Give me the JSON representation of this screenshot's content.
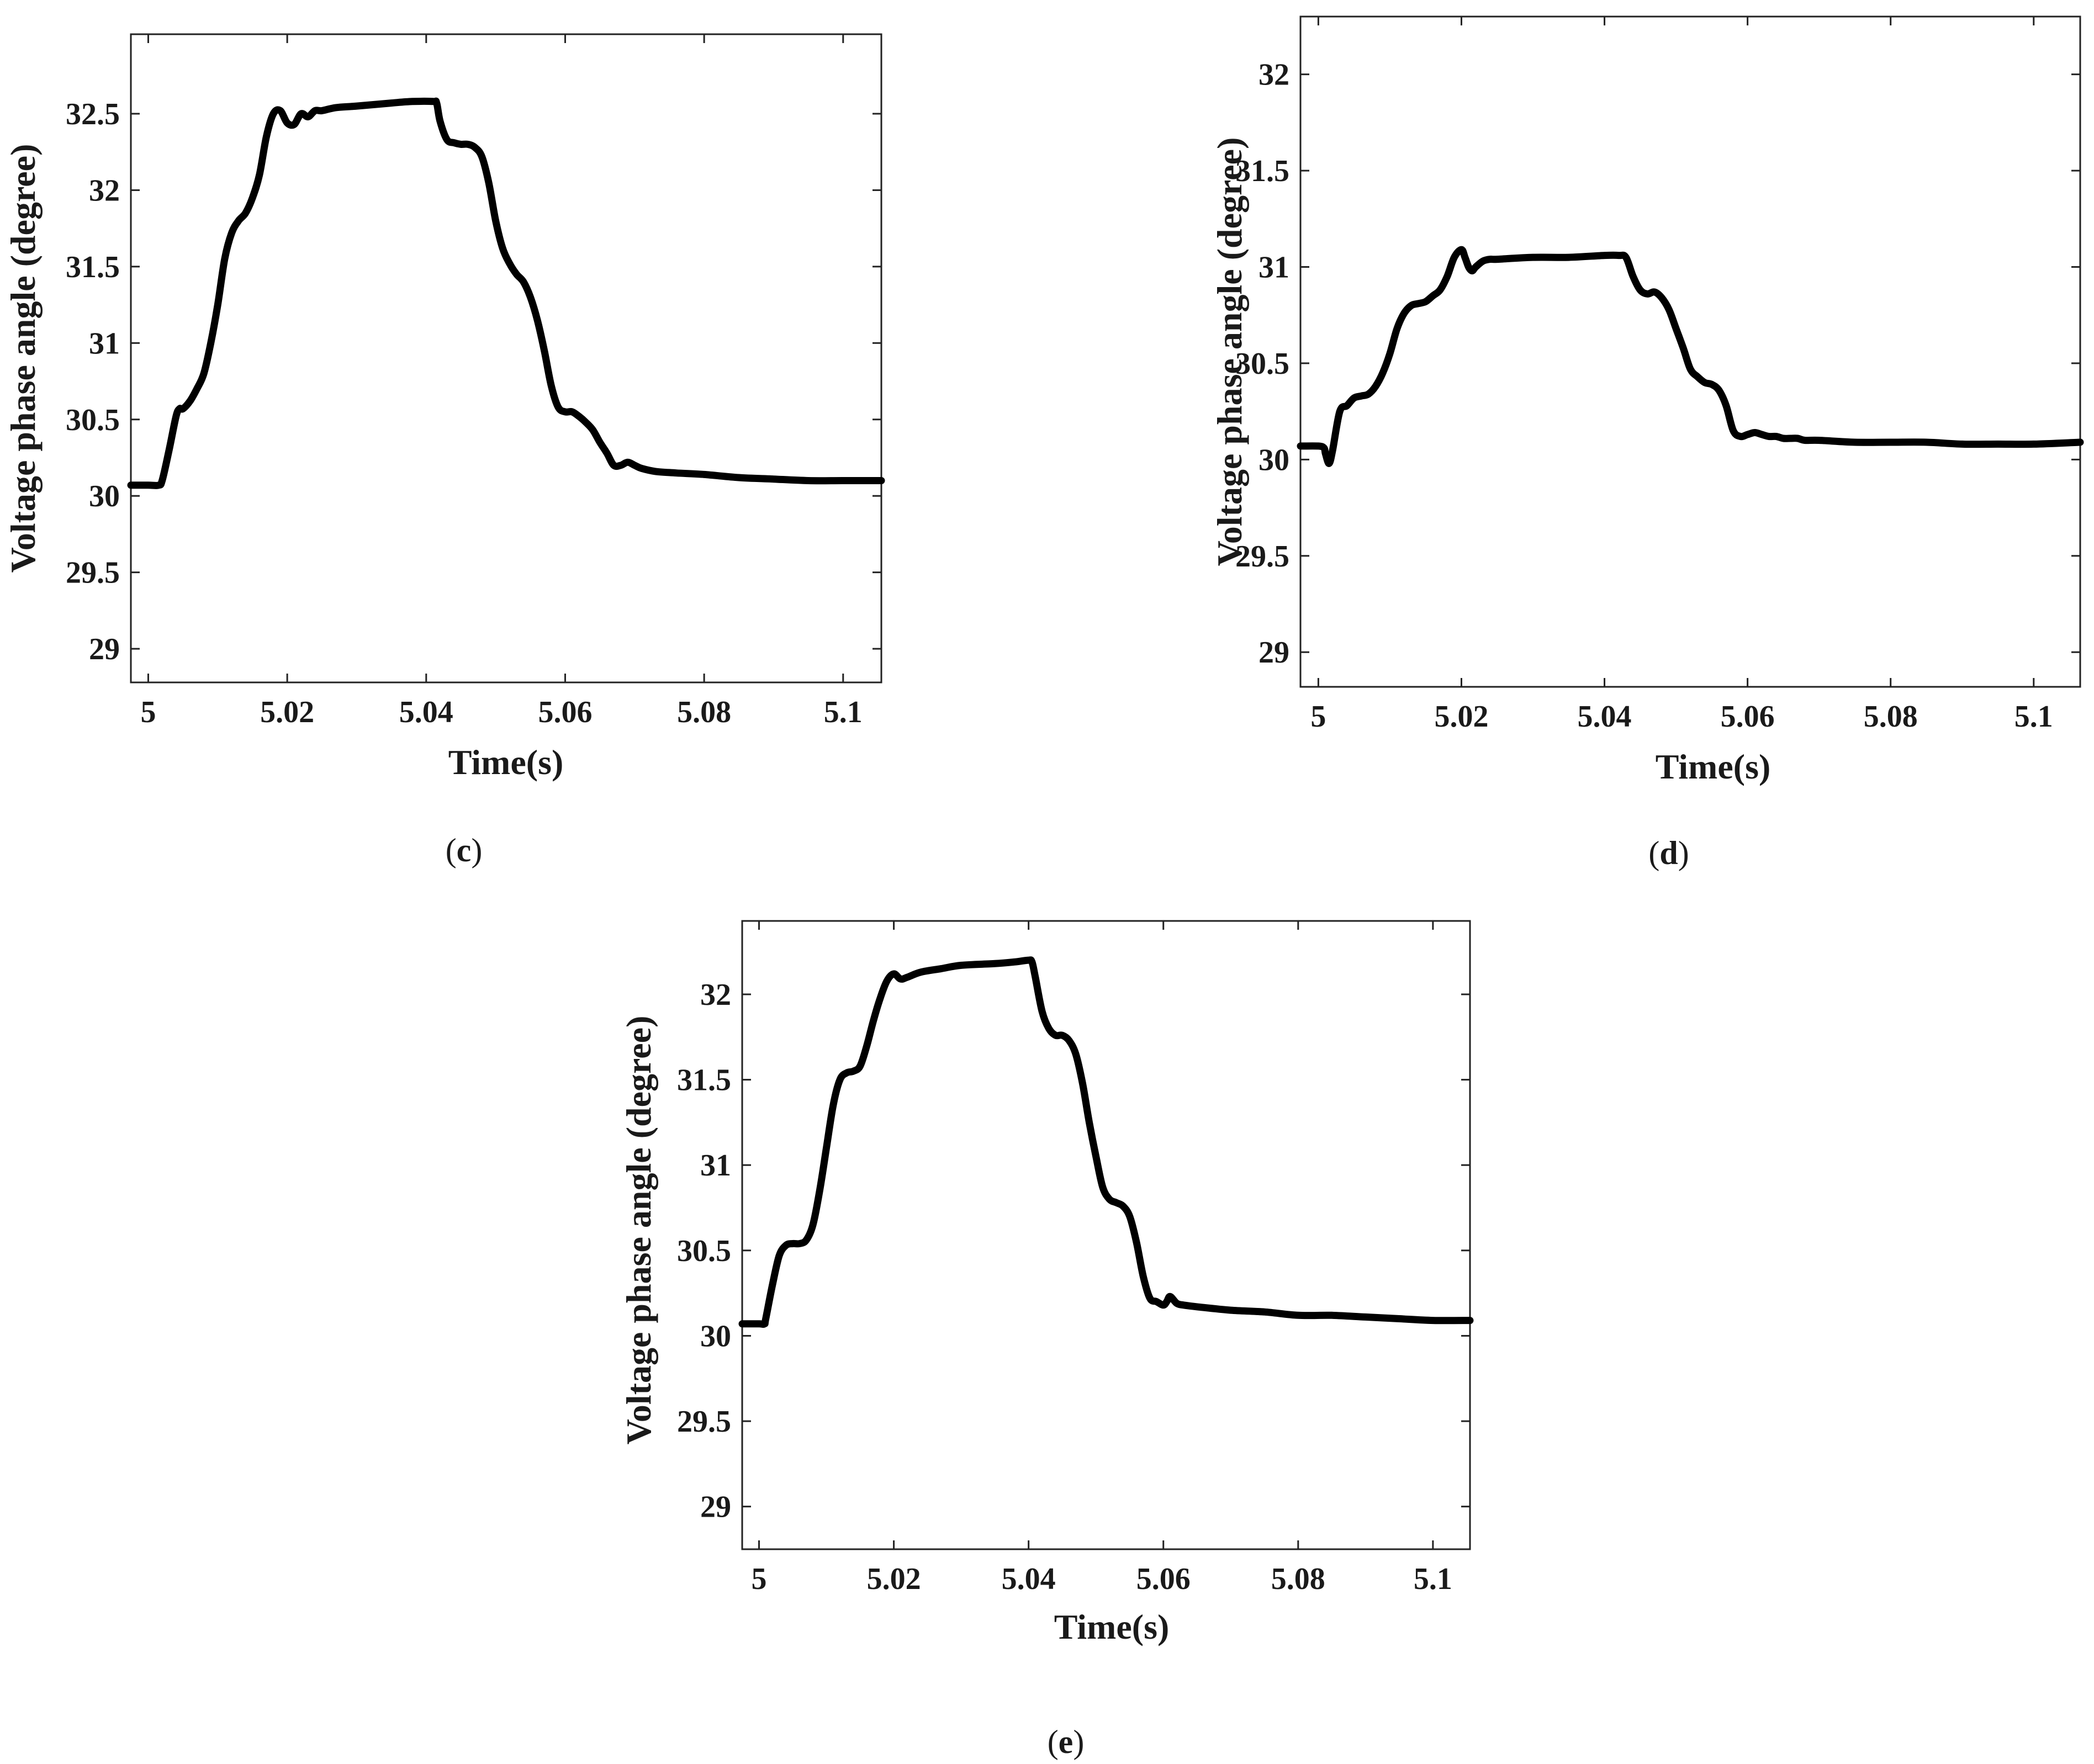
{
  "figure": {
    "panels": [
      {
        "caption_letter": "c"
      },
      {
        "caption_letter": "d"
      },
      {
        "caption_letter": "e"
      }
    ]
  },
  "chart_data": [
    {
      "type": "line",
      "title": "",
      "caption": "(c)",
      "xlabel": "Time(s)",
      "ylabel": "Voltage phase angle (degree)",
      "xlim": [
        4.9975,
        5.1055
      ],
      "ylim": [
        28.78,
        33.02
      ],
      "xticks": [
        5,
        5.02,
        5.04,
        5.06,
        5.08,
        5.1
      ],
      "xtick_labels": [
        "5",
        "5.02",
        "5.04",
        "5.06",
        "5.08",
        "5.1"
      ],
      "yticks": [
        29,
        29.5,
        30,
        30.5,
        31,
        31.5,
        32,
        32.5
      ],
      "ytick_labels": [
        "29",
        "29.5",
        "30",
        "30.5",
        "31",
        "31.5",
        "32",
        "32.5"
      ],
      "grid": false,
      "series": [
        {
          "color": "#000000",
          "x": [
            4.9975,
            5.0,
            5.0015,
            5.002,
            5.003,
            5.004,
            5.0045,
            5.005,
            5.006,
            5.007,
            5.008,
            5.009,
            5.01,
            5.011,
            5.012,
            5.013,
            5.014,
            5.015,
            5.016,
            5.017,
            5.018,
            5.019,
            5.02,
            5.021,
            5.022,
            5.023,
            5.024,
            5.025,
            5.027,
            5.03,
            5.035,
            5.038,
            5.041,
            5.0415,
            5.042,
            5.043,
            5.044,
            5.045,
            5.046,
            5.047,
            5.048,
            5.049,
            5.05,
            5.051,
            5.052,
            5.053,
            5.054,
            5.055,
            5.056,
            5.057,
            5.058,
            5.059,
            5.06,
            5.061,
            5.062,
            5.063,
            5.064,
            5.065,
            5.066,
            5.067,
            5.068,
            5.069,
            5.07,
            5.071,
            5.073,
            5.076,
            5.08,
            5.085,
            5.09,
            5.095,
            5.1,
            5.1055
          ],
          "y": [
            30.07,
            30.07,
            30.07,
            30.1,
            30.3,
            30.52,
            30.57,
            30.57,
            30.62,
            30.7,
            30.8,
            31.0,
            31.25,
            31.55,
            31.72,
            31.8,
            31.85,
            31.95,
            32.1,
            32.35,
            32.5,
            32.52,
            32.44,
            32.43,
            32.5,
            32.48,
            32.52,
            32.52,
            32.54,
            32.55,
            32.57,
            32.58,
            32.58,
            32.57,
            32.45,
            32.33,
            32.31,
            32.3,
            32.3,
            32.28,
            32.22,
            32.05,
            31.8,
            31.62,
            31.52,
            31.45,
            31.4,
            31.3,
            31.15,
            30.95,
            30.72,
            30.58,
            30.55,
            30.55,
            30.52,
            30.48,
            30.43,
            30.35,
            30.28,
            30.2,
            30.2,
            30.22,
            30.2,
            30.18,
            30.16,
            30.15,
            30.14,
            30.12,
            30.11,
            30.1,
            30.1,
            30.1
          ]
        }
      ]
    },
    {
      "type": "line",
      "title": "",
      "caption": "(d)",
      "xlabel": "Time(s)",
      "ylabel": "Voltage phase angle (degree)",
      "xlim": [
        4.9975,
        5.1065
      ],
      "ylim": [
        28.82,
        32.3
      ],
      "xticks": [
        5,
        5.02,
        5.04,
        5.06,
        5.08,
        5.1
      ],
      "xtick_labels": [
        "5",
        "5.02",
        "5.04",
        "5.06",
        "5.08",
        "5.1"
      ],
      "yticks": [
        29,
        29.5,
        30,
        30.5,
        31,
        31.5,
        32
      ],
      "ytick_labels": [
        "29",
        "29.5",
        "30",
        "30.5",
        "31",
        "31.5",
        "32"
      ],
      "grid": false,
      "series": [
        {
          "color": "#000000",
          "x": [
            4.9975,
            5.0,
            5.0008,
            5.001,
            5.0015,
            5.002,
            5.003,
            5.004,
            5.005,
            5.006,
            5.007,
            5.008,
            5.009,
            5.01,
            5.011,
            5.012,
            5.013,
            5.014,
            5.015,
            5.016,
            5.017,
            5.018,
            5.019,
            5.02,
            5.0205,
            5.021,
            5.0215,
            5.022,
            5.023,
            5.024,
            5.025,
            5.03,
            5.035,
            5.04,
            5.042,
            5.043,
            5.044,
            5.045,
            5.046,
            5.047,
            5.048,
            5.049,
            5.05,
            5.051,
            5.052,
            5.053,
            5.054,
            5.055,
            5.056,
            5.057,
            5.058,
            5.059,
            5.06,
            5.061,
            5.062,
            5.063,
            5.064,
            5.065,
            5.066,
            5.067,
            5.068,
            5.07,
            5.075,
            5.08,
            5.085,
            5.09,
            5.095,
            5.1,
            5.1065
          ],
          "y": [
            30.07,
            30.07,
            30.06,
            30.03,
            29.98,
            30.05,
            30.25,
            30.28,
            30.32,
            30.33,
            30.34,
            30.38,
            30.45,
            30.55,
            30.68,
            30.76,
            30.8,
            30.81,
            30.82,
            30.85,
            30.88,
            30.95,
            31.05,
            31.09,
            31.05,
            31.0,
            30.98,
            31.0,
            31.03,
            31.04,
            31.04,
            31.05,
            31.05,
            31.06,
            31.06,
            31.05,
            30.95,
            30.88,
            30.86,
            30.87,
            30.84,
            30.78,
            30.68,
            30.58,
            30.47,
            30.43,
            30.4,
            30.39,
            30.36,
            30.28,
            30.15,
            30.12,
            30.13,
            30.14,
            30.13,
            30.12,
            30.12,
            30.11,
            30.11,
            30.11,
            30.1,
            30.1,
            30.09,
            30.09,
            30.09,
            30.08,
            30.08,
            30.08,
            30.09
          ]
        }
      ]
    },
    {
      "type": "line",
      "title": "",
      "caption": "(e)",
      "xlabel": "Time(s)",
      "ylabel": "Voltage phase angle (degree)",
      "xlim": [
        4.9975,
        5.1055
      ],
      "ylim": [
        28.75,
        32.43
      ],
      "xticks": [
        5,
        5.02,
        5.04,
        5.06,
        5.08,
        5.1
      ],
      "xtick_labels": [
        "5",
        "5.02",
        "5.04",
        "5.06",
        "5.08",
        "5.1"
      ],
      "yticks": [
        29,
        29.5,
        30,
        30.5,
        31,
        31.5,
        32
      ],
      "ytick_labels": [
        "29",
        "29.5",
        "30",
        "30.5",
        "31",
        "31.5",
        "32"
      ],
      "grid": false,
      "series": [
        {
          "color": "#000000",
          "x": [
            4.9975,
            5.0,
            5.0008,
            5.001,
            5.002,
            5.003,
            5.004,
            5.005,
            5.006,
            5.007,
            5.008,
            5.009,
            5.01,
            5.011,
            5.012,
            5.013,
            5.014,
            5.015,
            5.016,
            5.017,
            5.018,
            5.019,
            5.02,
            5.021,
            5.022,
            5.024,
            5.027,
            5.03,
            5.035,
            5.038,
            5.04,
            5.0405,
            5.041,
            5.042,
            5.043,
            5.044,
            5.045,
            5.046,
            5.047,
            5.048,
            5.049,
            5.05,
            5.051,
            5.052,
            5.053,
            5.054,
            5.055,
            5.056,
            5.057,
            5.058,
            5.059,
            5.06,
            5.0605,
            5.061,
            5.062,
            5.063,
            5.065,
            5.07,
            5.075,
            5.08,
            5.085,
            5.09,
            5.095,
            5.1,
            5.1055
          ],
          "y": [
            30.07,
            30.07,
            30.07,
            30.1,
            30.3,
            30.47,
            30.53,
            30.54,
            30.54,
            30.56,
            30.65,
            30.85,
            31.1,
            31.35,
            31.5,
            31.54,
            31.55,
            31.58,
            31.7,
            31.85,
            31.98,
            32.08,
            32.12,
            32.09,
            32.1,
            32.13,
            32.15,
            32.17,
            32.18,
            32.19,
            32.2,
            32.19,
            32.1,
            31.9,
            31.8,
            31.76,
            31.76,
            31.73,
            31.65,
            31.48,
            31.25,
            31.05,
            30.87,
            30.8,
            30.78,
            30.76,
            30.7,
            30.55,
            30.35,
            30.22,
            30.2,
            30.18,
            30.2,
            30.23,
            30.19,
            30.18,
            30.17,
            30.15,
            30.14,
            30.12,
            30.12,
            30.11,
            30.1,
            30.09,
            30.09
          ]
        }
      ]
    }
  ]
}
